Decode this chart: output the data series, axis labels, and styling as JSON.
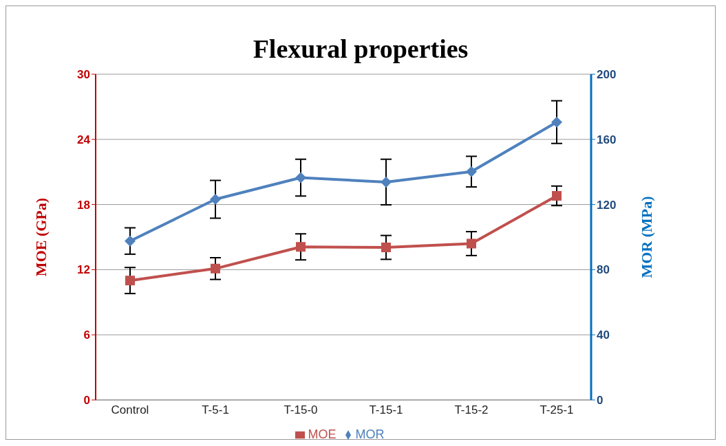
{
  "chart_data": {
    "type": "line",
    "title": "Flexural properties",
    "ylabel": "MOE (GPa)",
    "y2label": "MOR (MPa)",
    "categories": [
      "Control",
      "T-5-1",
      "T-15-0",
      "T-15-1",
      "T-15-2",
      "T-25-1"
    ],
    "series": [
      {
        "name": "MOE",
        "color": "#c0504d",
        "marker": "square",
        "values": [
          11.0,
          12.1,
          14.1,
          14.05,
          14.4,
          18.8
        ],
        "errors": [
          1.2,
          1.0,
          1.2,
          1.1,
          1.1,
          0.9
        ]
      },
      {
        "name": "MOR",
        "color": "#4f81bd",
        "marker": "diamond",
        "axis": "y2",
        "values": [
          97.6,
          123.2,
          136.5,
          133.8,
          140.2,
          170.6
        ],
        "errors": [
          8.1,
          11.6,
          11.3,
          14,
          9.4,
          13.1
        ]
      }
    ],
    "ylim": [
      0,
      30
    ],
    "yticks": [
      0,
      6,
      12,
      18,
      24,
      30
    ],
    "y2lim": [
      0,
      200
    ],
    "y2ticks": [
      0,
      40,
      80,
      120,
      160,
      200
    ],
    "grid": "y",
    "legend": "bottom",
    "line_style": "solid"
  }
}
